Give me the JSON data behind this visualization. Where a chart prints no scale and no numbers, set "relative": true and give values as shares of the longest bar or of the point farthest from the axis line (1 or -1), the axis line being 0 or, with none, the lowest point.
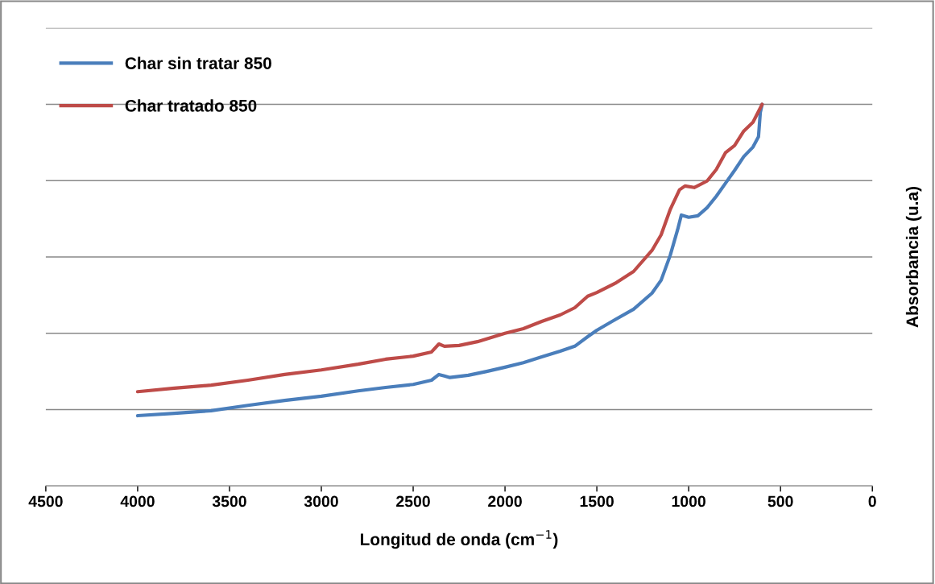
{
  "chart_data": {
    "type": "line",
    "relative": true,
    "xlabel": "Longitud de onda (cm$^{−1}$)",
    "ylabel": "Absorbancia (u.a)",
    "xlim": [
      4500,
      0
    ],
    "xticks": [
      4500,
      4000,
      3500,
      3000,
      2500,
      2000,
      1500,
      1000,
      500,
      0
    ],
    "tick_labels": "x",
    "grid": "y",
    "legend": "top left",
    "marker": "none",
    "line_style": "solid",
    "series": [
      {
        "name": "Char sin tratar 850",
        "color": "#4a7ebb",
        "x": [
          4000,
          3800,
          3600,
          3400,
          3200,
          3000,
          2800,
          2650,
          2500,
          2400,
          2360,
          2330,
          2300,
          2200,
          2100,
          2000,
          1900,
          1800,
          1700,
          1620,
          1550,
          1500,
          1400,
          1300,
          1200,
          1150,
          1100,
          1060,
          1040,
          1000,
          950,
          900,
          850,
          800,
          750,
          700,
          650,
          620,
          610,
          600
        ],
        "values": [
          0.184,
          0.19,
          0.197,
          0.211,
          0.224,
          0.235,
          0.249,
          0.258,
          0.266,
          0.277,
          0.292,
          0.288,
          0.284,
          0.29,
          0.3,
          0.311,
          0.323,
          0.338,
          0.353,
          0.366,
          0.391,
          0.408,
          0.436,
          0.463,
          0.505,
          0.539,
          0.605,
          0.672,
          0.71,
          0.704,
          0.708,
          0.729,
          0.759,
          0.793,
          0.827,
          0.863,
          0.888,
          0.915,
          0.979,
          1.0
        ]
      },
      {
        "name": "Char tratado 850",
        "color": "#be4b48",
        "x": [
          4000,
          3800,
          3600,
          3400,
          3200,
          3000,
          2800,
          2650,
          2500,
          2400,
          2360,
          2330,
          2250,
          2150,
          2000,
          1900,
          1800,
          1700,
          1620,
          1550,
          1500,
          1400,
          1300,
          1200,
          1150,
          1100,
          1050,
          1020,
          970,
          900,
          850,
          800,
          750,
          700,
          650,
          600
        ],
        "values": [
          0.247,
          0.256,
          0.264,
          0.277,
          0.292,
          0.304,
          0.319,
          0.332,
          0.34,
          0.351,
          0.372,
          0.366,
          0.368,
          0.378,
          0.4,
          0.412,
          0.431,
          0.448,
          0.467,
          0.497,
          0.507,
          0.531,
          0.562,
          0.617,
          0.658,
          0.725,
          0.776,
          0.786,
          0.782,
          0.799,
          0.829,
          0.873,
          0.892,
          0.93,
          0.953,
          1.0
        ]
      }
    ]
  }
}
